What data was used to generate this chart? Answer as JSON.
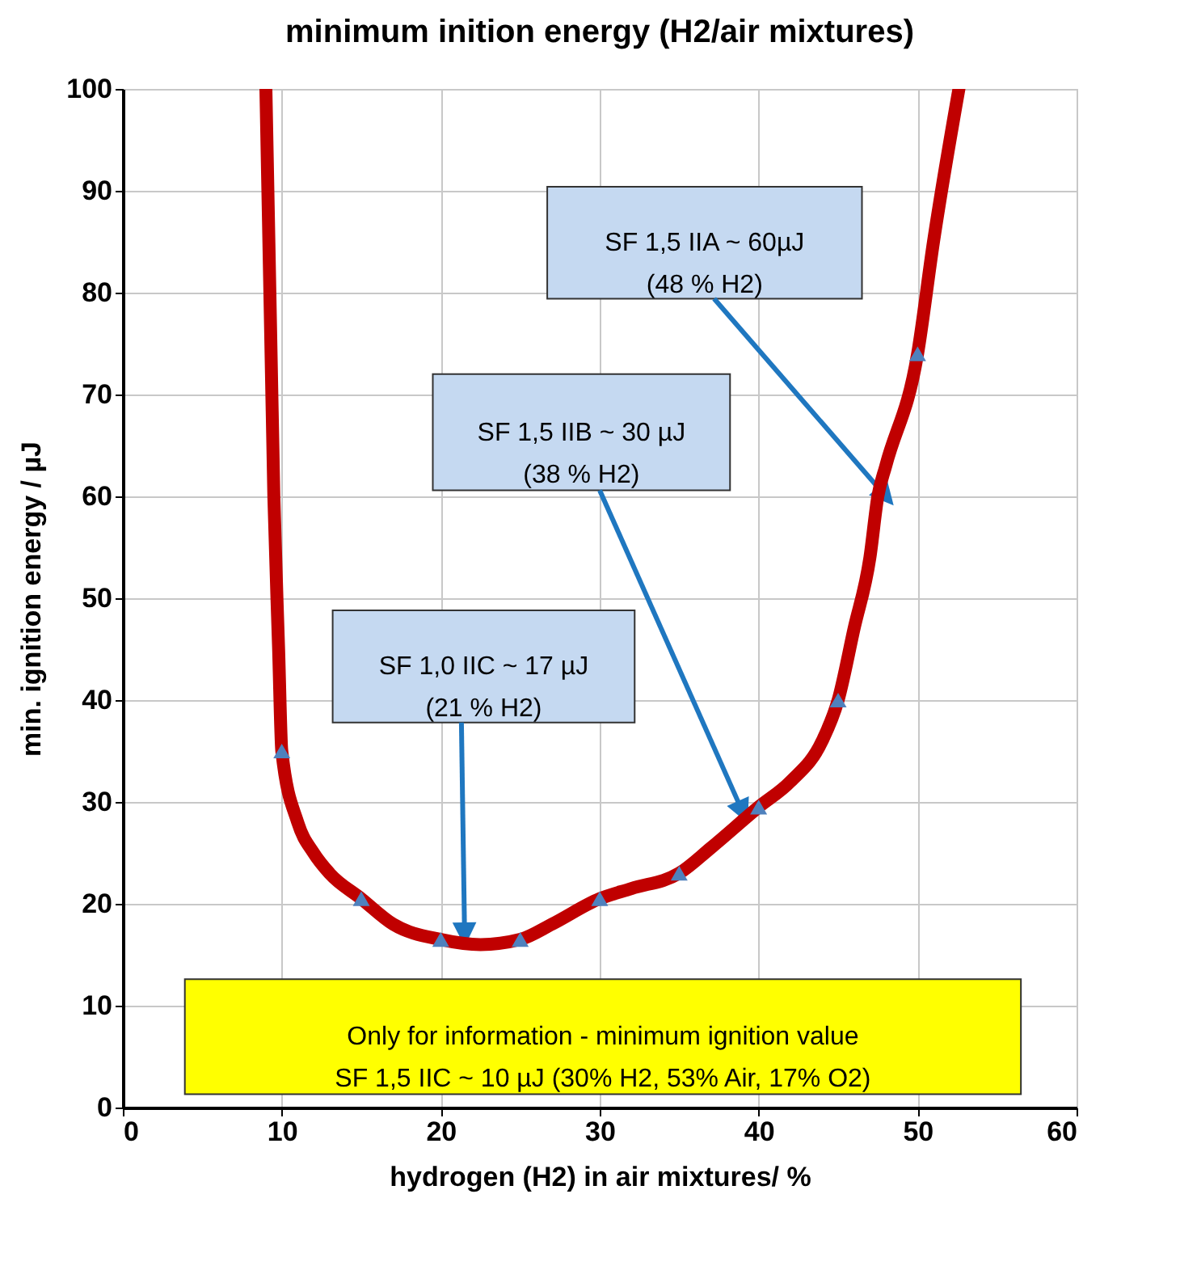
{
  "chart_data": {
    "type": "line",
    "title": "minimum inition energy  (H2/air mixtures)",
    "xlabel": "hydrogen (H2) in air mixtures/ %",
    "ylabel": "min. ignition energy / µJ",
    "xlim": [
      0,
      60
    ],
    "ylim": [
      0,
      100
    ],
    "xticks": [
      0,
      10,
      20,
      30,
      40,
      50,
      60
    ],
    "yticks": [
      0,
      10,
      20,
      30,
      40,
      50,
      60,
      70,
      80,
      90,
      100
    ],
    "grid": true,
    "line_style": "solid",
    "series": [
      {
        "color": "#c00000",
        "marker": "none",
        "x": [
          9,
          9.5,
          9.8,
          10,
          11,
          12,
          13,
          15,
          17,
          20,
          22.5,
          25,
          27,
          30,
          32,
          35,
          37,
          40,
          42,
          44,
          45,
          46,
          47,
          47.5,
          48,
          50,
          51,
          52.6
        ],
        "values": [
          100,
          60,
          45,
          35,
          28,
          25,
          23,
          20.5,
          18,
          16.5,
          16,
          16.5,
          18,
          20.5,
          21.5,
          23,
          25.5,
          29.5,
          32,
          36,
          40,
          47,
          54,
          60,
          63,
          74,
          85,
          100
        ]
      },
      {
        "type": "scatter",
        "color": "#4f81bd",
        "marker": "triangle",
        "x": [
          10,
          15,
          20,
          25,
          30,
          35,
          40,
          45,
          50
        ],
        "values": [
          35,
          20.5,
          16.5,
          16.5,
          20.5,
          23,
          29.5,
          40,
          74
        ]
      }
    ],
    "annotations": [
      {
        "text": "SF 1,5 IIA   ~ 60µJ\n(48 %  H2)",
        "x": 48,
        "y": 60
      },
      {
        "text": "SF 1,5 IIB  ~ 30 µJ\n(38 % H2)",
        "x": 39,
        "y": 29
      },
      {
        "text": "SF 1,0 IIC  ~ 17 µJ\n(21 % H2)",
        "x": 21.5,
        "y": 17
      },
      "Only for information -  minimum ignition value\nSF 1,5 IIC ~ 10 µJ  (30% H2, 53% Air, 17% O2)"
    ]
  }
}
